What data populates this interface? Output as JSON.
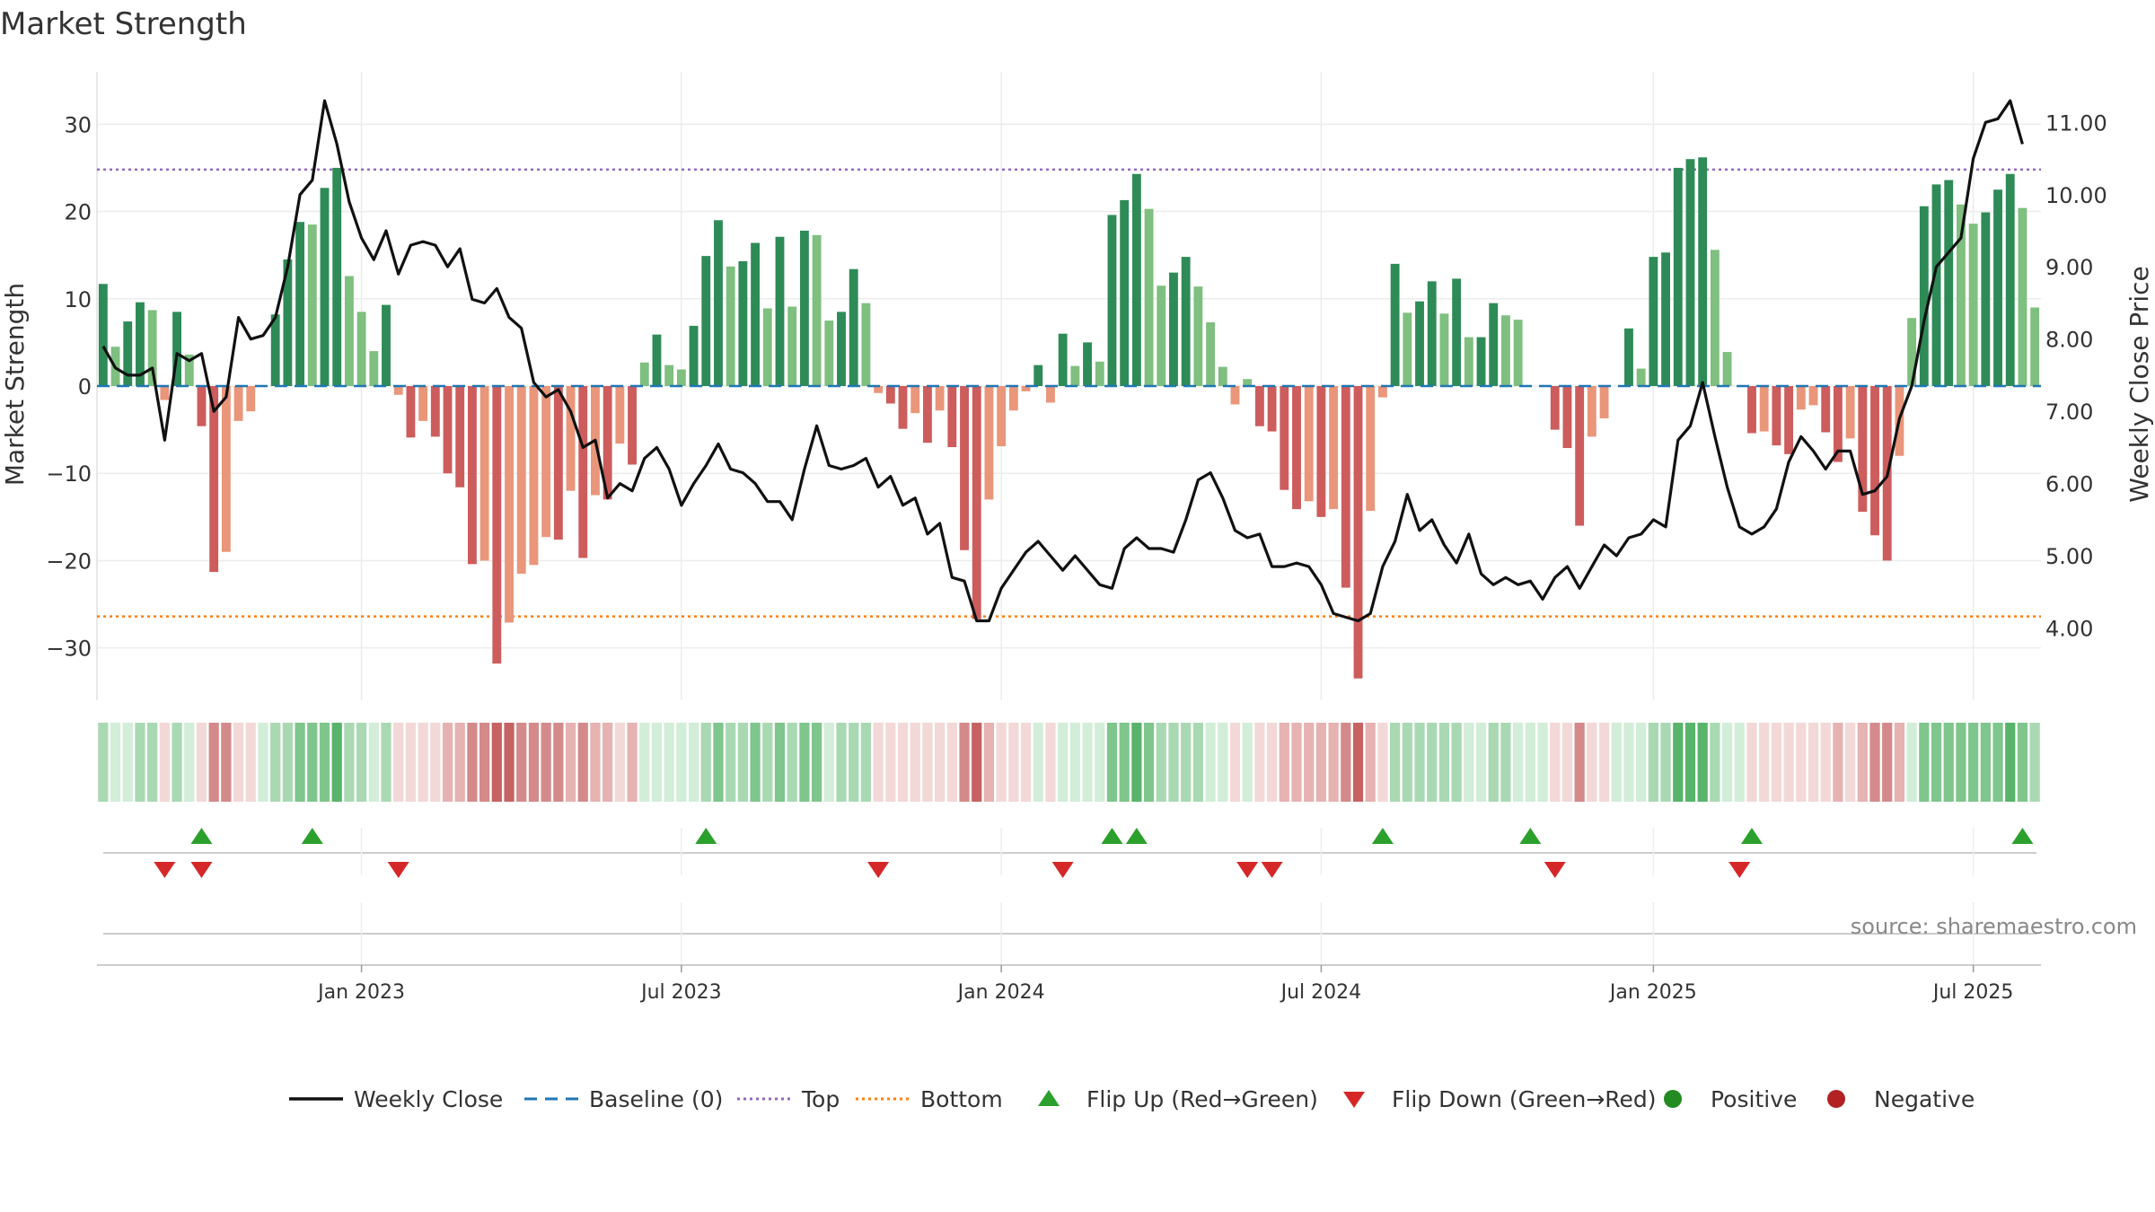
{
  "chart_data": {
    "type": "bar",
    "title": "Market Strength",
    "ylabel_left": "Market Strength",
    "ylabel_right": "Weekly Close Price",
    "source": "source: sharemaestro.com",
    "ylim_left": [
      -36,
      36
    ],
    "ylim_right": [
      3.0,
      11.7
    ],
    "yticks_left": [
      30,
      20,
      10,
      0,
      -10,
      -20,
      -30
    ],
    "yticks_left_labels": [
      "30",
      "20",
      "10",
      "0",
      "−10",
      "−20",
      "−30"
    ],
    "yticks_right": [
      11,
      10,
      9,
      8,
      7,
      6,
      5,
      4
    ],
    "yticks_right_labels": [
      "11.00",
      "10.00",
      "9.00",
      "8.00",
      "7.00",
      "6.00",
      "5.00",
      "4.00"
    ],
    "xticks": [
      {
        "label": "Jan 2023",
        "week": 21
      },
      {
        "label": "Jul 2023",
        "week": 47
      },
      {
        "label": "Jan 2024",
        "week": 73
      },
      {
        "label": "Jul 2024",
        "week": 99
      },
      {
        "label": "Jan 2025",
        "week": 126
      },
      {
        "label": "Jul 2025",
        "week": 152
      }
    ],
    "top_line": 24.8,
    "bottom_line": -26.4,
    "baseline": 0,
    "strength": [
      11.7,
      4.5,
      7.4,
      9.6,
      8.7,
      -1.6,
      8.5,
      3.6,
      -4.6,
      -21.3,
      -19.0,
      -4.0,
      -2.9,
      0,
      8.2,
      14.5,
      18.8,
      18.5,
      22.7,
      25.0,
      12.6,
      8.5,
      4.0,
      9.3,
      -1.0,
      -5.9,
      -4.0,
      -5.8,
      -10.0,
      -11.6,
      -20.4,
      -20.0,
      -31.8,
      -27.1,
      -21.5,
      -20.5,
      -17.3,
      -17.6,
      -12.0,
      -19.7,
      -12.5,
      -13.0,
      -6.6,
      -9.0,
      2.7,
      5.9,
      2.4,
      1.9,
      6.9,
      14.9,
      19.0,
      13.7,
      14.3,
      16.4,
      8.9,
      17.1,
      9.1,
      17.8,
      17.3,
      7.5,
      8.5,
      13.4,
      9.5,
      -0.8,
      -2.0,
      -4.9,
      -3.1,
      -6.5,
      -2.8,
      -7.0,
      -18.8,
      -26.7,
      -13.0,
      -6.9,
      -2.8,
      -0.6,
      2.4,
      -1.9,
      6.0,
      2.3,
      5.0,
      2.8,
      19.6,
      21.3,
      24.3,
      20.3,
      11.5,
      13.0,
      14.8,
      11.4,
      7.3,
      2.2,
      -2.1,
      0.8,
      -4.6,
      -5.2,
      -11.9,
      -14.1,
      -13.2,
      -15.0,
      -14.1,
      -23.1,
      -33.5,
      -14.3,
      -1.3,
      14.0,
      8.4,
      9.7,
      12.0,
      8.3,
      12.3,
      5.6,
      5.6,
      9.5,
      8.1,
      7.6,
      0,
      0,
      -5.0,
      -7.1,
      -16.0,
      -5.8,
      -3.7,
      0,
      6.6,
      2.0,
      14.8,
      15.3,
      25.0,
      26.0,
      26.2,
      15.6,
      3.9,
      0,
      -5.4,
      -5.2,
      -6.8,
      -7.8,
      -2.7,
      -2.2,
      -5.3,
      -8.7,
      -6.0,
      -14.4,
      -17.1,
      -20.0,
      -8.0,
      7.8,
      20.6,
      23.1,
      23.6,
      20.8,
      18.6,
      19.9,
      22.5,
      24.3,
      20.4,
      9.0
    ],
    "close": [
      7.9,
      7.6,
      7.5,
      7.5,
      7.6,
      6.6,
      7.8,
      7.7,
      7.8,
      7.0,
      7.2,
      8.3,
      8.0,
      8.05,
      8.3,
      9.0,
      10.0,
      10.2,
      11.3,
      10.7,
      9.9,
      9.4,
      9.1,
      9.5,
      8.9,
      9.3,
      9.35,
      9.3,
      9.0,
      9.25,
      8.55,
      8.5,
      8.7,
      8.3,
      8.15,
      7.4,
      7.2,
      7.3,
      7.0,
      6.5,
      6.6,
      5.8,
      6.0,
      5.9,
      6.35,
      6.5,
      6.2,
      5.7,
      6.0,
      6.25,
      6.55,
      6.2,
      6.15,
      6.0,
      5.75,
      5.75,
      5.5,
      6.2,
      6.8,
      6.25,
      6.2,
      6.25,
      6.35,
      5.95,
      6.1,
      5.7,
      5.8,
      5.3,
      5.45,
      4.7,
      4.65,
      4.1,
      4.1,
      4.55,
      4.8,
      5.05,
      5.2,
      5.0,
      4.8,
      5.0,
      4.8,
      4.6,
      4.55,
      5.1,
      5.25,
      5.1,
      5.1,
      5.05,
      5.5,
      6.05,
      6.15,
      5.8,
      5.35,
      5.25,
      5.3,
      4.85,
      4.85,
      4.9,
      4.85,
      4.6,
      4.2,
      4.15,
      4.1,
      4.2,
      4.85,
      5.2,
      5.85,
      5.35,
      5.5,
      5.15,
      4.9,
      5.3,
      4.75,
      4.6,
      4.7,
      4.6,
      4.65,
      4.4,
      4.7,
      4.85,
      4.55,
      4.85,
      5.15,
      5.0,
      5.25,
      5.3,
      5.5,
      5.4,
      6.6,
      6.8,
      7.4,
      6.65,
      5.95,
      5.4,
      5.3,
      5.4,
      5.65,
      6.3,
      6.65,
      6.45,
      6.2,
      6.45,
      6.45,
      5.85,
      5.9,
      6.1,
      6.9,
      7.35,
      8.25,
      9.0,
      9.2,
      9.4,
      10.5,
      11.0,
      11.05,
      11.3,
      10.7
    ],
    "flips_up": [
      8,
      17,
      49,
      82,
      84,
      104,
      116,
      134,
      156
    ],
    "flips_down": [
      5,
      8,
      24,
      63,
      78,
      93,
      95,
      118,
      133
    ],
    "heat_colors": {
      "pos": [
        "#d2edd8",
        "#a9d9b3",
        "#7fc68c",
        "#58b46b"
      ],
      "neg": [
        "#f3d8d8",
        "#e6b2b2",
        "#d48a8a",
        "#c76262"
      ]
    },
    "bar_colors": {
      "pos_strong": "#2e8b57",
      "pos_weak": "#7fbf7f",
      "neg_strong": "#cd5c5c",
      "neg_weak": "#e9967a"
    },
    "line_colors": {
      "close": "#111111",
      "baseline": "#1f77b4",
      "top": "#9467bd",
      "bottom": "#ff7f0e",
      "flip_up": "#2ca02c",
      "flip_down": "#d62728"
    },
    "legend": [
      {
        "label": "Weekly Close",
        "kind": "line-solid",
        "color": "#111111"
      },
      {
        "label": "Baseline (0)",
        "kind": "line-dash",
        "color": "#1f77b4"
      },
      {
        "label": "Top",
        "kind": "line-dot",
        "color": "#9467bd"
      },
      {
        "label": "Bottom",
        "kind": "line-dot",
        "color": "#ff7f0e"
      },
      {
        "label": "Flip Up (Red→Green)",
        "kind": "tri-up",
        "color": "#2ca02c"
      },
      {
        "label": "Flip Down (Green→Red)",
        "kind": "tri-down",
        "color": "#d62728"
      },
      {
        "label": "Positive",
        "kind": "dot",
        "color": "#228b22"
      },
      {
        "label": "Negative",
        "kind": "dot",
        "color": "#b22222"
      }
    ]
  }
}
